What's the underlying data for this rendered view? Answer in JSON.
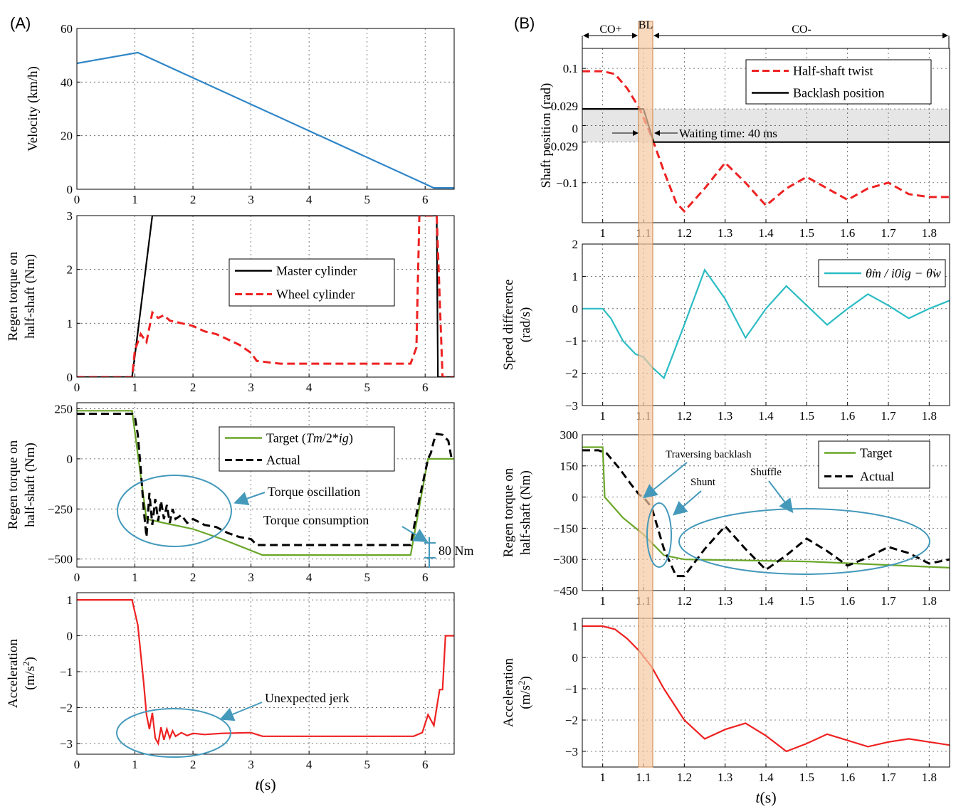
{
  "panels": {
    "a_label": "(A)",
    "b_label": "(B)"
  },
  "colors": {
    "blue": "#2f86c8",
    "red": "#ee2222",
    "green": "#6aa629",
    "cyan": "#2bbcc4",
    "black": "#000000",
    "teal": "#4499bb",
    "backlash": "#f7c9a3"
  },
  "phases": {
    "co_plus": "CO+",
    "bl": "BL",
    "co_minus": "CO-"
  },
  "chart_data": [
    {
      "id": "a1",
      "type": "line",
      "ylabel": "Velocity (km/h)",
      "xlim": [
        0,
        6.5
      ],
      "ylim": [
        0,
        60
      ],
      "xticks": [
        0,
        1,
        2,
        3,
        4,
        5,
        6
      ],
      "yticks": [
        0,
        20,
        40,
        60
      ],
      "series": [
        {
          "name": "Velocity",
          "color": "#2f86c8",
          "x": [
            0,
            1.05,
            6.15,
            6.5
          ],
          "y": [
            47,
            51,
            0.5,
            0.5
          ]
        }
      ]
    },
    {
      "id": "a2",
      "type": "line",
      "ylabel": [
        "Regen torque on",
        "half-shaft (Nm)"
      ],
      "xlim": [
        0,
        6.5
      ],
      "ylim": [
        0,
        3
      ],
      "xticks": [
        0,
        1,
        2,
        3,
        4,
        5,
        6
      ],
      "yticks": [
        0,
        1,
        2,
        3
      ],
      "legend": [
        "Master cylinder",
        "Wheel cylinder"
      ],
      "series": [
        {
          "name": "Master cylinder",
          "color": "#000000",
          "x": [
            0,
            0.95,
            1.0,
            1.3,
            6.2,
            6.22,
            6.5
          ],
          "y": [
            0,
            0,
            0.4,
            3,
            3,
            0,
            0
          ]
        },
        {
          "name": "Wheel cylinder",
          "color": "#ee2222",
          "dash": true,
          "x": [
            0,
            0.95,
            1.0,
            1.1,
            1.2,
            1.3,
            1.4,
            1.5,
            1.6,
            1.8,
            2.0,
            2.2,
            2.4,
            2.6,
            2.8,
            3.0,
            3.1,
            3.5,
            4.0,
            4.5,
            5.0,
            5.5,
            5.75,
            5.85,
            5.9,
            6.2,
            6.25,
            6.3,
            6.5
          ],
          "y": [
            0,
            0,
            0.5,
            0.8,
            0.65,
            1.2,
            1.1,
            1.15,
            1.05,
            1.0,
            0.95,
            0.85,
            0.8,
            0.7,
            0.6,
            0.45,
            0.3,
            0.25,
            0.25,
            0.25,
            0.25,
            0.25,
            0.25,
            0.55,
            3,
            3,
            1.5,
            0,
            0
          ]
        }
      ]
    },
    {
      "id": "a3",
      "type": "line",
      "ylabel": [
        "Regen torque on",
        "half-shaft (Nm)"
      ],
      "xlim": [
        0,
        6.5
      ],
      "ylim": [
        -540,
        280
      ],
      "xticks": [
        0,
        1,
        2,
        3,
        4,
        5,
        6
      ],
      "yticks": [
        250,
        0,
        -250,
        -500
      ],
      "ytick_labels": [
        "250",
        "0",
        "−250",
        "−500"
      ],
      "legend": [
        "Target (Tm/2*ig)",
        "Actual"
      ],
      "series": [
        {
          "name": "Target",
          "color": "#6aa629",
          "x": [
            0,
            0.95,
            1.2,
            1.5,
            2.0,
            2.5,
            3.2,
            5.75,
            6.05,
            6.5
          ],
          "y": [
            240,
            240,
            -300,
            -320,
            -350,
            -400,
            -480,
            -480,
            0,
            0
          ]
        },
        {
          "name": "Actual",
          "color": "#000000",
          "dash": true,
          "x": [
            0,
            0.95,
            1.0,
            1.05,
            1.1,
            1.15,
            1.2,
            1.25,
            1.3,
            1.35,
            1.4,
            1.45,
            1.5,
            1.55,
            1.6,
            1.65,
            1.7,
            1.8,
            1.9,
            2.0,
            2.2,
            2.4,
            2.6,
            2.8,
            3.0,
            3.1,
            3.5,
            4.0,
            5.0,
            5.75,
            5.9,
            6.05,
            6.1,
            6.15,
            6.2,
            6.3,
            6.4,
            6.45
          ],
          "y": [
            225,
            225,
            210,
            120,
            -50,
            -250,
            -390,
            -170,
            -330,
            -200,
            -310,
            -210,
            -300,
            -230,
            -320,
            -250,
            -300,
            -280,
            -320,
            -300,
            -330,
            -340,
            -370,
            -390,
            -400,
            -430,
            -430,
            -430,
            -430,
            -430,
            -200,
            0,
            30,
            90,
            125,
            120,
            90,
            10
          ]
        }
      ],
      "annotations": {
        "oscillation": "Torque oscillation",
        "consumption": "Torque consumption",
        "gap": "80 Nm"
      }
    },
    {
      "id": "a4",
      "type": "line",
      "ylabel": [
        "Acceleration",
        "(m/s²)"
      ],
      "xlim": [
        0,
        6.5
      ],
      "ylim": [
        -3.3,
        1.2
      ],
      "xticks": [
        0,
        1,
        2,
        3,
        4,
        5,
        6
      ],
      "yticks": [
        1,
        0,
        -1,
        -2,
        -3
      ],
      "ytick_labels": [
        "1",
        "0",
        "−1",
        "−2",
        "−3"
      ],
      "xlabel": "t(s)",
      "series": [
        {
          "name": "Acceleration",
          "color": "#ee2222",
          "x": [
            0,
            0.95,
            1.05,
            1.15,
            1.2,
            1.25,
            1.3,
            1.35,
            1.4,
            1.45,
            1.5,
            1.55,
            1.6,
            1.65,
            1.7,
            1.8,
            1.9,
            2.0,
            2.2,
            2.5,
            3.0,
            3.2,
            3.5,
            4.0,
            5.0,
            5.8,
            5.95,
            6.05,
            6.15,
            6.25,
            6.3,
            6.35,
            6.4,
            6.5
          ],
          "y": [
            1,
            1,
            0.3,
            -1.3,
            -2.2,
            -2.6,
            -2.15,
            -2.85,
            -3.0,
            -2.55,
            -2.9,
            -2.6,
            -2.85,
            -2.65,
            -2.8,
            -2.7,
            -2.78,
            -2.72,
            -2.75,
            -2.72,
            -2.7,
            -2.8,
            -2.8,
            -2.8,
            -2.8,
            -2.8,
            -2.7,
            -2.2,
            -2.5,
            -1.5,
            -1.5,
            0,
            0,
            0
          ]
        }
      ],
      "annotations": {
        "jerk": "Unexpected jerk"
      }
    },
    {
      "id": "b1",
      "type": "line",
      "ylabel": "Shaft position (rad)",
      "xlim": [
        0.95,
        1.85
      ],
      "ylim": [
        -0.17,
        0.135
      ],
      "xticks": [
        1,
        1.1,
        1.2,
        1.3,
        1.4,
        1.5,
        1.6,
        1.7,
        1.8
      ],
      "xtick_labels": [
        "1",
        "1.1",
        "1.2",
        "1.3",
        "1.4",
        "1.5",
        "1.6",
        "1.7",
        "1.8"
      ],
      "yticks": [
        0.1,
        0.029,
        0,
        -0.029,
        -0.1
      ],
      "ytick_labels": [
        "0.1",
        "0.029",
        "0",
        "−0.029",
        "−0.1"
      ],
      "legend": [
        "Half-shaft twist",
        "Backlash position"
      ],
      "series": [
        {
          "name": "Half-shaft twist",
          "color": "#ee2222",
          "dash": true,
          "x": [
            0.95,
            1.0,
            1.03,
            1.06,
            1.09,
            1.12,
            1.15,
            1.18,
            1.2,
            1.25,
            1.3,
            1.35,
            1.4,
            1.45,
            1.5,
            1.55,
            1.6,
            1.65,
            1.7,
            1.75,
            1.8,
            1.85
          ],
          "y": [
            0.095,
            0.095,
            0.09,
            0.065,
            0.03,
            -0.02,
            -0.08,
            -0.135,
            -0.15,
            -0.11,
            -0.065,
            -0.1,
            -0.14,
            -0.11,
            -0.09,
            -0.11,
            -0.13,
            -0.11,
            -0.1,
            -0.12,
            -0.125,
            -0.125
          ]
        },
        {
          "name": "Backlash position",
          "color": "#000000",
          "x": [
            0.95,
            1.1,
            1.125,
            1.85
          ],
          "y": [
            0.029,
            0.029,
            -0.029,
            -0.029
          ]
        }
      ],
      "annotations": {
        "waiting": "Waiting time: 40 ms"
      }
    },
    {
      "id": "b2",
      "type": "line",
      "ylabel": [
        "Speed difference",
        "(rad/s)"
      ],
      "xlim": [
        0.95,
        1.85
      ],
      "ylim": [
        -3,
        2
      ],
      "xticks": [
        1,
        1.1,
        1.2,
        1.3,
        1.4,
        1.5,
        1.6,
        1.7,
        1.8
      ],
      "xtick_labels": [
        "1",
        "1.1",
        "1.2",
        "1.3",
        "1.4",
        "1.5",
        "1.6",
        "1.7",
        "1.8"
      ],
      "yticks": [
        2,
        1,
        0,
        -1,
        -2,
        -3
      ],
      "ytick_labels": [
        "2",
        "1",
        "0",
        "−1",
        "−2",
        "−3"
      ],
      "legend": [
        "θ̇m / i0ig − θ̇w"
      ],
      "series": [
        {
          "name": "Speed difference",
          "color": "#2bbcc4",
          "x": [
            0.95,
            1.0,
            1.02,
            1.05,
            1.08,
            1.1,
            1.12,
            1.15,
            1.2,
            1.25,
            1.3,
            1.35,
            1.4,
            1.45,
            1.5,
            1.55,
            1.6,
            1.65,
            1.7,
            1.75,
            1.8,
            1.85
          ],
          "y": [
            0,
            0,
            -0.3,
            -1.0,
            -1.4,
            -1.5,
            -1.8,
            -2.15,
            -0.5,
            1.2,
            0.3,
            -0.9,
            0.0,
            0.7,
            0.1,
            -0.5,
            0.0,
            0.45,
            0.1,
            -0.3,
            0.0,
            0.25
          ]
        }
      ]
    },
    {
      "id": "b3",
      "type": "line",
      "ylabel": [
        "Regen torque on",
        "half-shaft (Nm)"
      ],
      "xlim": [
        0.95,
        1.85
      ],
      "ylim": [
        -450,
        300
      ],
      "xticks": [
        1,
        1.1,
        1.2,
        1.3,
        1.4,
        1.5,
        1.6,
        1.7,
        1.8
      ],
      "xtick_labels": [
        "1",
        "1.1",
        "1.2",
        "1.3",
        "1.4",
        "1.5",
        "1.6",
        "1.7",
        "1.8"
      ],
      "yticks": [
        300,
        150,
        0,
        -150,
        -300,
        -450
      ],
      "ytick_labels": [
        "300",
        "150",
        "0",
        "−150",
        "−300",
        "−450"
      ],
      "legend": [
        "Target",
        "Actual"
      ],
      "series": [
        {
          "name": "Target",
          "color": "#6aa629",
          "x": [
            0.95,
            1.0,
            1.005,
            1.05,
            1.1,
            1.15,
            1.2,
            1.5,
            1.85
          ],
          "y": [
            240,
            240,
            0,
            -100,
            -180,
            -280,
            -300,
            -310,
            -340
          ]
        },
        {
          "name": "Actual",
          "color": "#000000",
          "dash": true,
          "x": [
            0.95,
            0.99,
            1.01,
            1.04,
            1.07,
            1.09,
            1.1,
            1.12,
            1.15,
            1.18,
            1.2,
            1.25,
            1.3,
            1.35,
            1.4,
            1.45,
            1.5,
            1.55,
            1.6,
            1.65,
            1.7,
            1.75,
            1.8,
            1.85
          ],
          "y": [
            225,
            225,
            210,
            140,
            60,
            10,
            0,
            -50,
            -250,
            -380,
            -380,
            -250,
            -140,
            -250,
            -350,
            -280,
            -200,
            -260,
            -330,
            -290,
            -240,
            -270,
            -320,
            -300
          ]
        }
      ],
      "annotations": {
        "traversing": "Traversing backlash",
        "shunt": "Shunt",
        "shuffle": "Shuffle"
      }
    },
    {
      "id": "b4",
      "type": "line",
      "ylabel": [
        "Acceleration",
        "(m/s²)"
      ],
      "xlim": [
        0.95,
        1.85
      ],
      "ylim": [
        -3.5,
        1.25
      ],
      "xticks": [
        1,
        1.1,
        1.2,
        1.3,
        1.4,
        1.5,
        1.6,
        1.7,
        1.8
      ],
      "xtick_labels": [
        "1",
        "1.1",
        "1.2",
        "1.3",
        "1.4",
        "1.5",
        "1.6",
        "1.7",
        "1.8"
      ],
      "yticks": [
        1,
        0,
        -1,
        -2,
        -3
      ],
      "ytick_labels": [
        "1",
        "0",
        "−1",
        "−2",
        "−3"
      ],
      "xlabel": "t(s)",
      "series": [
        {
          "name": "Acceleration",
          "color": "#ee2222",
          "x": [
            0.95,
            1.0,
            1.03,
            1.06,
            1.09,
            1.12,
            1.15,
            1.2,
            1.25,
            1.3,
            1.35,
            1.4,
            1.45,
            1.5,
            1.55,
            1.6,
            1.65,
            1.7,
            1.75,
            1.8,
            1.85
          ],
          "y": [
            1,
            1,
            0.9,
            0.6,
            0.2,
            -0.3,
            -1.0,
            -2.0,
            -2.6,
            -2.3,
            -2.1,
            -2.5,
            -3.0,
            -2.75,
            -2.45,
            -2.65,
            -2.85,
            -2.7,
            -2.6,
            -2.7,
            -2.8
          ]
        }
      ]
    }
  ]
}
